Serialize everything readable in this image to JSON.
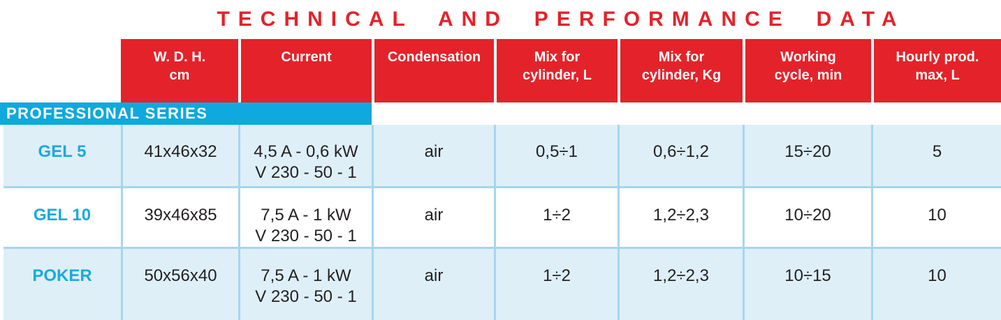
{
  "title": "TECHNICAL AND PERFORMANCE DATA",
  "series_band": {
    "label": "PROFESSIONAL SERIES"
  },
  "table": {
    "headers": [
      {
        "line1": "W. D. H.",
        "line2": "cm"
      },
      {
        "line1": "Current",
        "line2": ""
      },
      {
        "line1": "Condensation",
        "line2": ""
      },
      {
        "line1": "Mix for",
        "line2": "cylinder, L"
      },
      {
        "line1": "Mix for",
        "line2": "cylinder, Kg"
      },
      {
        "line1": "Working",
        "line2": "cycle, min"
      },
      {
        "line1": "Hourly prod.",
        "line2": "max, L"
      }
    ],
    "rows": [
      {
        "model": "GEL 5",
        "wdh": "41x46x32",
        "current_line1": "4,5 A - 0,6 kW",
        "current_line2": "V 230 - 50 - 1",
        "condensation": "air",
        "mix_l": "0,5÷1",
        "mix_kg": "0,6÷1,2",
        "working_cycle": "15÷20",
        "hourly_prod": "5"
      },
      {
        "model": "GEL 10",
        "wdh": "39x46x85",
        "current_line1": "7,5 A - 1 kW",
        "current_line2": "V 230 - 50 - 1",
        "condensation": "air",
        "mix_l": "1÷2",
        "mix_kg": "1,2÷2,3",
        "working_cycle": "10÷20",
        "hourly_prod": "10"
      },
      {
        "model": "POKER",
        "wdh": "50x56x40",
        "current_line1": "7,5 A - 1 kW",
        "current_line2": "V 230 - 50 - 1",
        "condensation": "air",
        "mix_l": "1÷2",
        "mix_kg": "1,2÷2,3",
        "working_cycle": "10÷15",
        "hourly_prod": "10"
      }
    ]
  },
  "colors": {
    "accent_red": "#E4222A",
    "band_cyan": "#0FA8DF",
    "model_text_cyan": "#1BA9E0",
    "row_alt_background": "#DEEFF8",
    "grid_border_blue": "#A5D6EE",
    "header_text": "#FFFFFF",
    "body_text": "#231F20"
  }
}
